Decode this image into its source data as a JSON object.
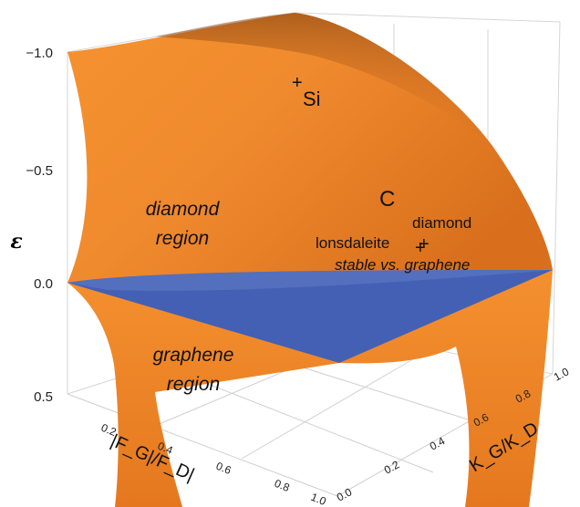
{
  "chart_data": {
    "type": "surface",
    "axes": {
      "z": {
        "label": "ε",
        "ticks": [
          "−1.0",
          "−0.5",
          "0.0",
          "0.5"
        ],
        "range": [
          -1.0,
          0.5
        ],
        "inverted": true
      },
      "x": {
        "label": "|F_G|/F_D|",
        "ticks": [
          "0.2",
          "0.4",
          "0.6",
          "0.8",
          "1.0"
        ],
        "range": [
          0.0,
          1.0
        ]
      },
      "y": {
        "label": "K_G/K_D",
        "ticks": [
          "0.0",
          "0.2",
          "0.4",
          "0.6",
          "0.8",
          "1.0"
        ],
        "range": [
          0.0,
          1.0
        ]
      }
    },
    "surfaces": [
      {
        "role": "energy surface",
        "color": "#f28a30"
      },
      {
        "role": "zero plane",
        "color": "#4360b4"
      }
    ],
    "points": [
      {
        "label": "Si"
      },
      {
        "label": "diamond"
      },
      {
        "label": "lonsdaleite"
      }
    ],
    "annotations": {
      "diamond_region": [
        "diamond",
        "region"
      ],
      "graphene_region": [
        "graphene",
        "region"
      ],
      "carbon": "C",
      "stable": "stable vs. graphene"
    },
    "grid": true
  }
}
